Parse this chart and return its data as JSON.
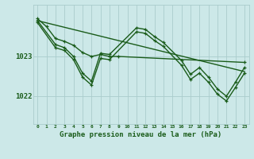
{
  "background_color": "#cce8e8",
  "grid_color": "#aacccc",
  "line_color": "#1a5c1a",
  "title": "Graphe pression niveau de la mer (hPa)",
  "xlim": [
    -0.5,
    23.5
  ],
  "ylim": [
    1021.3,
    1024.3
  ],
  "yticks": [
    1022,
    1023
  ],
  "series": [
    {
      "x": [
        0,
        1,
        2,
        3,
        4,
        5,
        6,
        7,
        8,
        9,
        23
      ],
      "y": [
        1023.95,
        1023.75,
        1023.45,
        1023.38,
        1023.28,
        1023.1,
        1023.0,
        1023.05,
        1023.0,
        1023.0,
        1022.85
      ],
      "marker": "+",
      "lw": 1.0
    },
    {
      "x": [
        0,
        2,
        3,
        4,
        5,
        6,
        7,
        8,
        11,
        12,
        13,
        14,
        16,
        17,
        18,
        19,
        20,
        21,
        22,
        23
      ],
      "y": [
        1023.9,
        1023.3,
        1023.22,
        1023.0,
        1022.58,
        1022.38,
        1023.08,
        1023.05,
        1023.72,
        1023.68,
        1023.5,
        1023.35,
        1022.9,
        1022.55,
        1022.72,
        1022.48,
        1022.18,
        1022.0,
        1022.35,
        1022.72
      ],
      "marker": "+",
      "lw": 1.0
    },
    {
      "x": [
        0,
        2,
        3,
        4,
        5,
        6,
        7,
        8,
        11,
        12,
        13,
        14,
        16,
        17,
        18,
        19,
        20,
        21,
        22,
        23
      ],
      "y": [
        1023.85,
        1023.22,
        1023.15,
        1022.92,
        1022.48,
        1022.28,
        1022.95,
        1022.92,
        1023.62,
        1023.58,
        1023.4,
        1023.25,
        1022.78,
        1022.42,
        1022.58,
        1022.35,
        1022.05,
        1021.88,
        1022.22,
        1022.58
      ],
      "marker": "+",
      "lw": 1.0
    },
    {
      "x": [
        0,
        23
      ],
      "y": [
        1023.9,
        1022.62
      ],
      "marker": null,
      "lw": 1.0
    }
  ]
}
